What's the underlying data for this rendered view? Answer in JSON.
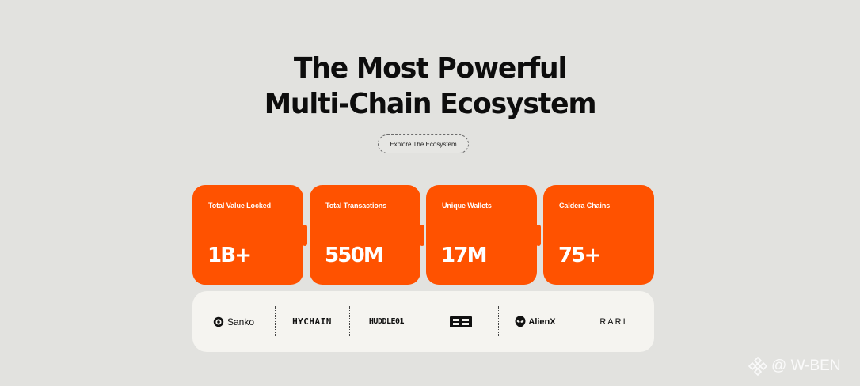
{
  "hero": {
    "title_line1": "The Most Powerful",
    "title_line2": "Multi-Chain Ecosystem",
    "cta_label": "Explore The Ecosystem"
  },
  "stats": [
    {
      "label": "Total Value Locked",
      "value": "1B+"
    },
    {
      "label": "Total Transactions",
      "value": "550M"
    },
    {
      "label": "Unique Wallets",
      "value": "17M"
    },
    {
      "label": "Caldera Chains",
      "value": "75+"
    }
  ],
  "partners": {
    "sanko": "Sanko",
    "hychain": "HYCHAIN",
    "huddle": "HUDDLE01",
    "b3": "B3",
    "alienx": "AlienX",
    "rari": "RARI"
  },
  "watermark": "@ W-BEN",
  "colors": {
    "background": "#e2e2df",
    "accent": "#ff5200",
    "logo_strip": "#f5f4f0"
  }
}
